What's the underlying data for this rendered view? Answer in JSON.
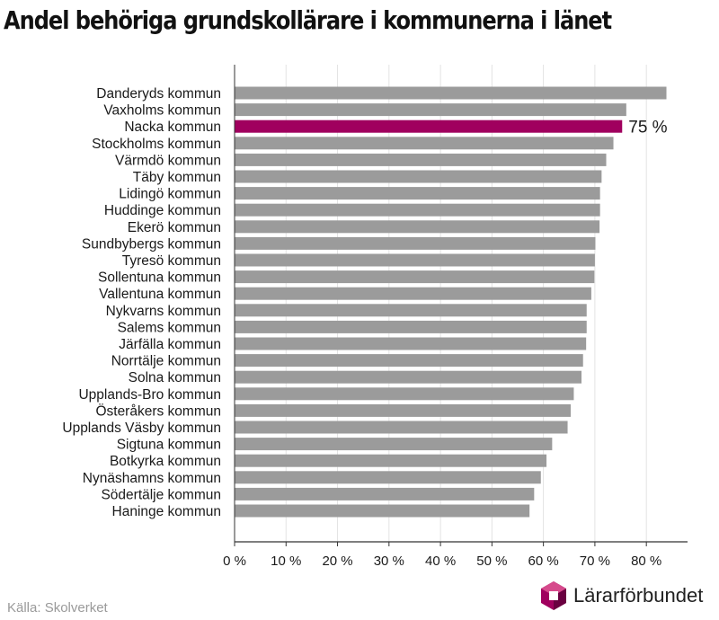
{
  "chart_data": {
    "type": "bar",
    "orientation": "horizontal",
    "title": "Andel behöriga grundskollärare i kommunerna i länet",
    "categories": [
      "Danderyds kommun",
      "Vaxholms kommun",
      "Nacka kommun",
      "Stockholms kommun",
      "Värmdö kommun",
      "Täby kommun",
      "Lidingö kommun",
      "Huddinge kommun",
      "Ekerö kommun",
      "Sundbybergs kommun",
      "Tyresö kommun",
      "Sollentuna kommun",
      "Vallentuna kommun",
      "Nykvarns kommun",
      "Salems kommun",
      "Järfälla kommun",
      "Norrtälje kommun",
      "Solna kommun",
      "Upplands-Bro kommun",
      "Österåkers kommun",
      "Upplands Väsby kommun",
      "Sigtuna kommun",
      "Botkyrka kommun",
      "Nynäshamns kommun",
      "Södertälje kommun",
      "Haninge kommun"
    ],
    "values": [
      83.9,
      76.1,
      75.3,
      73.6,
      72.2,
      71.3,
      71.0,
      71.0,
      70.9,
      70.1,
      70.0,
      69.9,
      69.3,
      68.4,
      68.4,
      68.3,
      67.7,
      67.4,
      65.9,
      65.3,
      64.7,
      61.7,
      60.6,
      59.5,
      58.2,
      57.3
    ],
    "highlight_index": 2,
    "highlight_label": "75 %",
    "xlim": [
      0,
      88
    ],
    "xticks": [
      0,
      10,
      20,
      30,
      40,
      50,
      60,
      70,
      80
    ],
    "xtick_labels": [
      "0 %",
      "10 %",
      "20 %",
      "30 %",
      "40 %",
      "50 %",
      "60 %",
      "70 %",
      "80 %"
    ],
    "grid": true,
    "colors": {
      "bar": "#9b9b9b",
      "highlight": "#a0005e",
      "grid": "#e3e3e3",
      "axis": "#333333"
    }
  },
  "footer": {
    "source": "Källa: Skolverket",
    "brand": "Lärarförbundet"
  },
  "logo": {
    "icon": "lararforbundet-hexagon-icon",
    "colors": [
      "#a0005e",
      "#d64a8c",
      "#6a0040"
    ]
  }
}
